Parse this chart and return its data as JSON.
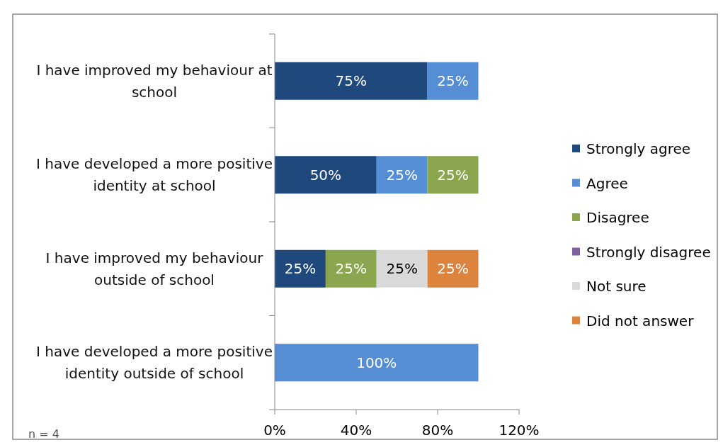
{
  "chart_data": {
    "type": "bar",
    "orientation": "horizontal",
    "stacked": true,
    "categories": [
      "I have improved my behaviour at school",
      "I have developed a more positive identity at school",
      "I have improved my behaviour outside of school",
      "I have developed a more positive identity outside of school"
    ],
    "series": [
      {
        "name": "Strongly agree",
        "color": "#1f497d",
        "values": [
          75,
          50,
          25,
          null
        ],
        "value_labels": [
          "75%",
          "50%",
          "25%",
          null
        ]
      },
      {
        "name": "Agree",
        "color": "#558ed5",
        "values": [
          25,
          25,
          null,
          100
        ],
        "value_labels": [
          "25%",
          "25%",
          null,
          "100%"
        ]
      },
      {
        "name": "Disagree",
        "color": "#8aa64f",
        "values": [
          null,
          25,
          25,
          null
        ],
        "value_labels": [
          null,
          "25%",
          "25%",
          null
        ]
      },
      {
        "name": "Strongly disagree",
        "color": "#7f60a0",
        "values": [
          null,
          null,
          null,
          null
        ]
      },
      {
        "name": "Not sure",
        "color": "#d9d9d9",
        "values": [
          null,
          null,
          25,
          null
        ],
        "value_labels": [
          null,
          null,
          "25%",
          null
        ]
      },
      {
        "name": "Did not answer",
        "color": "#dc843e",
        "values": [
          null,
          null,
          25,
          null
        ],
        "value_labels": [
          null,
          null,
          "25%",
          null
        ]
      }
    ],
    "xlim": [
      0,
      120
    ],
    "xticks": [
      {
        "value": 0,
        "label": "0%"
      },
      {
        "value": 40,
        "label": "40%"
      },
      {
        "value": 80,
        "label": "80%"
      },
      {
        "value": 120,
        "label": "120%"
      }
    ],
    "grid": false,
    "legend": "right",
    "annotations": [
      "n = 4"
    ]
  }
}
